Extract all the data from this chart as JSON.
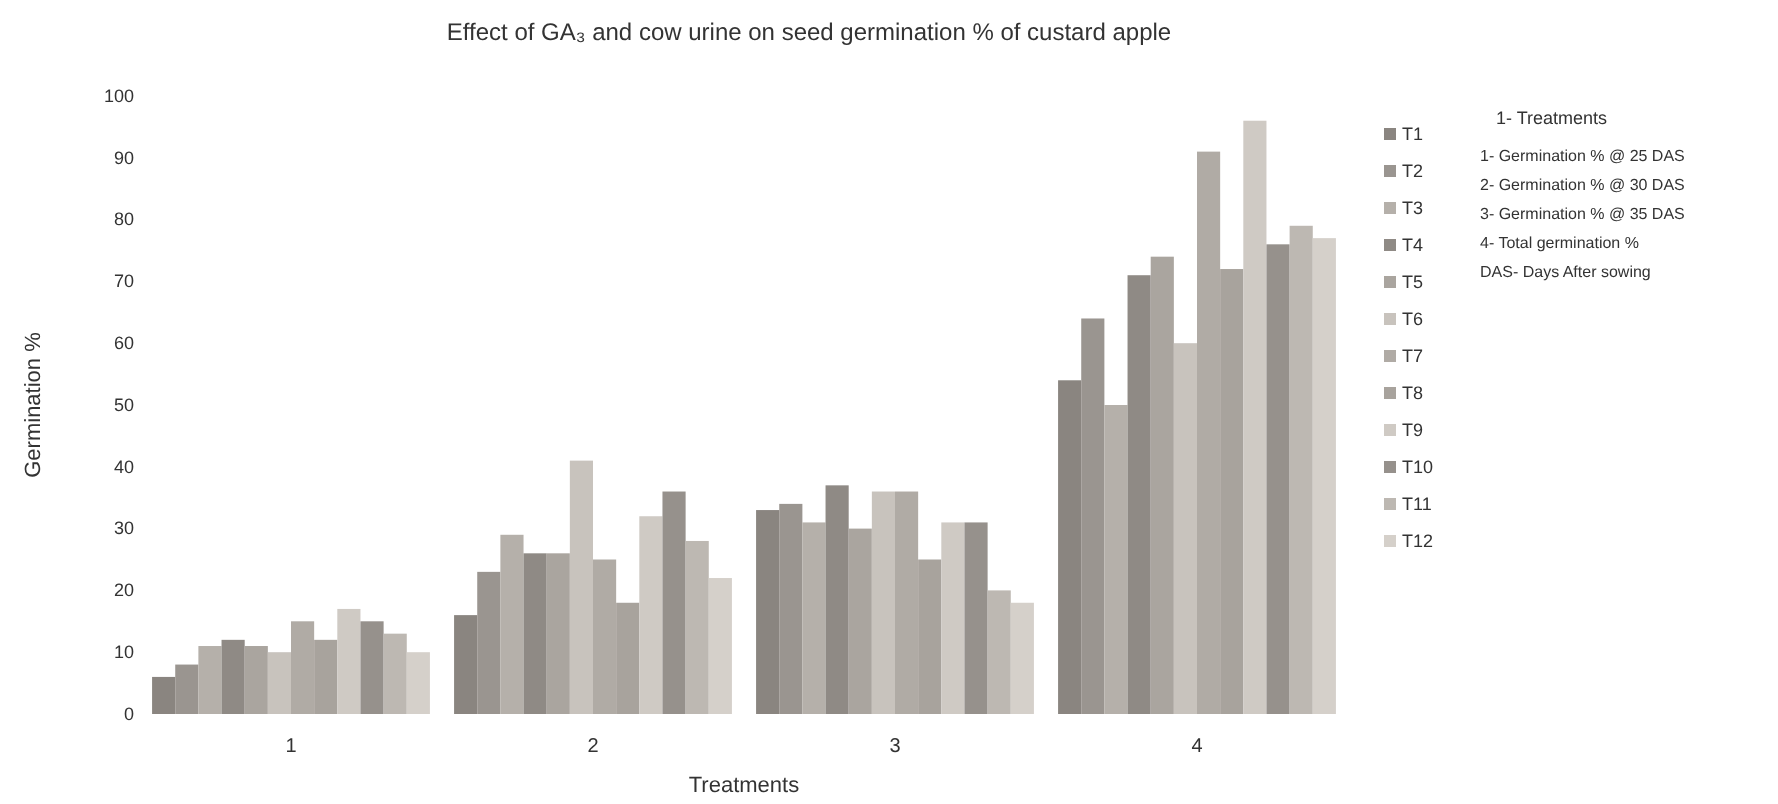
{
  "chart_data": {
    "type": "bar",
    "title": "Effect of GA₃ and cow urine on seed germination % of custard apple",
    "xlabel": "Treatments",
    "ylabel": "Germination %",
    "categories": [
      "1",
      "2",
      "3",
      "4"
    ],
    "series": [
      {
        "name": "T1",
        "color": "#8a8580",
        "values": [
          6,
          16,
          33,
          54
        ]
      },
      {
        "name": "T2",
        "color": "#9a9590",
        "values": [
          8,
          23,
          34,
          64
        ]
      },
      {
        "name": "T3",
        "color": "#b5b0aa",
        "values": [
          11,
          29,
          31,
          50
        ]
      },
      {
        "name": "T4",
        "color": "#8f8a85",
        "values": [
          12,
          26,
          37,
          71
        ]
      },
      {
        "name": "T5",
        "color": "#aaa59f",
        "values": [
          11,
          26,
          30,
          74
        ]
      },
      {
        "name": "T6",
        "color": "#c8c3bd",
        "values": [
          10,
          41,
          36,
          60
        ]
      },
      {
        "name": "T7",
        "color": "#b0aba5",
        "values": [
          15,
          25,
          36,
          91
        ]
      },
      {
        "name": "T8",
        "color": "#a8a39d",
        "values": [
          12,
          18,
          25,
          72
        ]
      },
      {
        "name": "T9",
        "color": "#cfcac4",
        "values": [
          17,
          32,
          31,
          96
        ]
      },
      {
        "name": "T10",
        "color": "#96918c",
        "values": [
          15,
          36,
          31,
          76
        ]
      },
      {
        "name": "T11",
        "color": "#bdb8b2",
        "values": [
          13,
          28,
          20,
          79
        ]
      },
      {
        "name": "T12",
        "color": "#d5d0ca",
        "values": [
          10,
          22,
          18,
          77
        ]
      }
    ],
    "ylim": [
      0,
      100
    ],
    "yticks": [
      0,
      10,
      20,
      30,
      40,
      50,
      60,
      70,
      80,
      90,
      100
    ],
    "grid": false,
    "legend": "right",
    "annotations": [
      "1- Treatments",
      "1- Germination % @ 25 DAS",
      "2- Germination % @ 30 DAS",
      "3- Germination % @ 35 DAS",
      "4- Total germination %",
      "DAS- Days After sowing"
    ]
  }
}
